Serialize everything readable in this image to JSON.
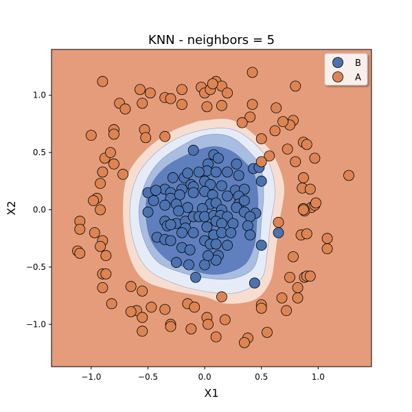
{
  "chart_data": {
    "type": "scatter",
    "title": "KNN - neighbors = 5",
    "xlabel": "X1",
    "ylabel": "X2",
    "xlim": [
      -1.35,
      1.47
    ],
    "ylim": [
      -1.37,
      1.4
    ],
    "xticks": [
      -1.0,
      -0.5,
      0.0,
      0.5,
      1.0
    ],
    "yticks": [
      -1.0,
      -0.5,
      0.0,
      0.5,
      1.0
    ],
    "xtick_labels": [
      "−1.0",
      "−0.5",
      "0.0",
      "0.5",
      "1.0"
    ],
    "ytick_labels": [
      "−1.0",
      "−0.5",
      "0.0",
      "0.5",
      "1.0"
    ],
    "grid": false,
    "legend_position": "top-right",
    "background_region_color": "#e49c7b",
    "decision_regions": [
      {
        "label": "B",
        "level": 0.4,
        "color": "#f7ddd0",
        "boundary": [
          [
            0.0,
            0.78
          ],
          [
            0.25,
            0.78
          ],
          [
            0.5,
            0.6
          ],
          [
            0.62,
            0.45
          ],
          [
            0.7,
            0.2
          ],
          [
            0.66,
            -0.1
          ],
          [
            0.62,
            -0.4
          ],
          [
            0.58,
            -0.62
          ],
          [
            0.45,
            -0.78
          ],
          [
            0.2,
            -0.82
          ],
          [
            0.0,
            -0.76
          ],
          [
            -0.3,
            -0.7
          ],
          [
            -0.55,
            -0.6
          ],
          [
            -0.68,
            -0.35
          ],
          [
            -0.72,
            0.0
          ],
          [
            -0.68,
            0.3
          ],
          [
            -0.52,
            0.52
          ],
          [
            -0.3,
            0.68
          ],
          [
            -0.1,
            0.76
          ]
        ]
      },
      {
        "label": "B",
        "level": 0.6,
        "color": "#e6ecf7",
        "boundary": [
          [
            0.0,
            0.7
          ],
          [
            0.25,
            0.7
          ],
          [
            0.45,
            0.57
          ],
          [
            0.57,
            0.4
          ],
          [
            0.62,
            0.15
          ],
          [
            0.58,
            -0.12
          ],
          [
            0.55,
            -0.38
          ],
          [
            0.5,
            -0.6
          ],
          [
            0.3,
            -0.72
          ],
          [
            0.05,
            -0.72
          ],
          [
            -0.25,
            -0.65
          ],
          [
            -0.5,
            -0.52
          ],
          [
            -0.62,
            -0.3
          ],
          [
            -0.66,
            0.0
          ],
          [
            -0.6,
            0.28
          ],
          [
            -0.45,
            0.48
          ],
          [
            -0.25,
            0.62
          ]
        ]
      },
      {
        "label": "B",
        "level": 0.8,
        "color": "#a9bde0",
        "boundary": [
          [
            0.0,
            0.65
          ],
          [
            0.22,
            0.64
          ],
          [
            0.4,
            0.5
          ],
          [
            0.5,
            0.35
          ],
          [
            0.52,
            0.12
          ],
          [
            0.5,
            -0.1
          ],
          [
            0.48,
            -0.35
          ],
          [
            0.42,
            -0.52
          ],
          [
            0.25,
            -0.6
          ],
          [
            0.05,
            -0.6
          ],
          [
            -0.2,
            -0.55
          ],
          [
            -0.42,
            -0.45
          ],
          [
            -0.54,
            -0.25
          ],
          [
            -0.58,
            0.0
          ],
          [
            -0.52,
            0.24
          ],
          [
            -0.4,
            0.42
          ],
          [
            -0.22,
            0.55
          ]
        ]
      },
      {
        "label": "B",
        "level": 1.0,
        "color": "#5f7fbe",
        "boundary": [
          [
            0.05,
            0.55
          ],
          [
            0.22,
            0.52
          ],
          [
            0.35,
            0.42
          ],
          [
            0.44,
            0.3
          ],
          [
            0.47,
            0.1
          ],
          [
            0.46,
            -0.1
          ],
          [
            0.44,
            -0.3
          ],
          [
            0.36,
            -0.47
          ],
          [
            0.2,
            -0.55
          ],
          [
            0.02,
            -0.56
          ],
          [
            -0.18,
            -0.5
          ],
          [
            -0.35,
            -0.42
          ],
          [
            -0.48,
            -0.25
          ],
          [
            -0.52,
            0.0
          ],
          [
            -0.48,
            0.2
          ],
          [
            -0.36,
            0.36
          ],
          [
            -0.18,
            0.47
          ]
        ]
      }
    ],
    "series": [
      {
        "name": "B",
        "color": "#4c72b0",
        "points": [
          [
            -0.1,
            0.52
          ],
          [
            0.03,
            0.4
          ],
          [
            0.08,
            0.48
          ],
          [
            0.12,
            0.45
          ],
          [
            0.28,
            0.4
          ],
          [
            0.43,
            0.36
          ],
          [
            0.48,
            0.37
          ],
          [
            -0.28,
            0.28
          ],
          [
            -0.18,
            0.28
          ],
          [
            -0.15,
            0.32
          ],
          [
            0.02,
            0.34
          ],
          [
            -0.05,
            0.33
          ],
          [
            0.1,
            0.33
          ],
          [
            0.2,
            0.33
          ],
          [
            0.3,
            0.3
          ],
          [
            -0.35,
            0.18
          ],
          [
            -0.3,
            0.15
          ],
          [
            -0.2,
            0.18
          ],
          [
            -0.12,
            0.22
          ],
          [
            -0.1,
            0.2
          ],
          [
            0.0,
            0.25
          ],
          [
            0.05,
            0.22
          ],
          [
            0.15,
            0.21
          ],
          [
            0.27,
            0.17
          ],
          [
            0.35,
            0.18
          ],
          [
            0.5,
            0.25
          ],
          [
            -0.5,
            0.15
          ],
          [
            -0.43,
            0.17
          ],
          [
            -0.45,
            0.08
          ],
          [
            -0.3,
            0.1
          ],
          [
            -0.22,
            0.13
          ],
          [
            -0.1,
            0.15
          ],
          [
            0.0,
            0.16
          ],
          [
            0.07,
            0.13
          ],
          [
            0.2,
            0.12
          ],
          [
            0.3,
            0.12
          ],
          [
            -0.35,
            0.04
          ],
          [
            -0.25,
            0.05
          ],
          [
            -0.15,
            0.02
          ],
          [
            0.05,
            0.05
          ],
          [
            0.1,
            0.06
          ],
          [
            0.3,
            0.05
          ],
          [
            0.35,
            0.08
          ],
          [
            0.28,
            0.02
          ],
          [
            -0.5,
            -0.02
          ],
          [
            -0.23,
            -0.01
          ],
          [
            -0.02,
            0.01
          ],
          [
            0.15,
            0.0
          ],
          [
            0.35,
            -0.02
          ],
          [
            0.45,
            -0.03
          ],
          [
            -0.35,
            -0.1
          ],
          [
            -0.25,
            -0.12
          ],
          [
            -0.17,
            -0.1
          ],
          [
            -0.1,
            -0.06
          ],
          [
            -0.05,
            -0.06
          ],
          [
            0.0,
            -0.06
          ],
          [
            0.08,
            -0.05
          ],
          [
            0.14,
            -0.05
          ],
          [
            0.2,
            -0.06
          ],
          [
            0.4,
            -0.06
          ],
          [
            -0.33,
            -0.14
          ],
          [
            -0.3,
            -0.13
          ],
          [
            -0.17,
            -0.16
          ],
          [
            0.02,
            -0.15
          ],
          [
            0.1,
            -0.1
          ],
          [
            0.15,
            -0.12
          ],
          [
            0.25,
            -0.12
          ],
          [
            0.38,
            -0.14
          ],
          [
            -0.42,
            -0.24
          ],
          [
            -0.35,
            -0.26
          ],
          [
            -0.3,
            -0.27
          ],
          [
            -0.2,
            -0.2
          ],
          [
            -0.1,
            -0.2
          ],
          [
            0.08,
            -0.22
          ],
          [
            0.15,
            -0.2
          ],
          [
            0.23,
            -0.2
          ],
          [
            0.4,
            -0.22
          ],
          [
            -0.2,
            -0.33
          ],
          [
            -0.13,
            -0.35
          ],
          [
            0.0,
            -0.27
          ],
          [
            0.05,
            -0.3
          ],
          [
            0.1,
            -0.3
          ],
          [
            0.2,
            -0.31
          ],
          [
            0.5,
            -0.31
          ],
          [
            0.12,
            -0.4
          ],
          [
            -0.25,
            -0.46
          ],
          [
            -0.14,
            -0.48
          ],
          [
            0.0,
            -0.48
          ],
          [
            0.1,
            -0.44
          ],
          [
            0.03,
            -0.4
          ],
          [
            -0.08,
            -0.59
          ],
          [
            0.44,
            -0.64
          ],
          [
            0.65,
            -0.2
          ]
        ]
      },
      {
        "name": "A",
        "color": "#dd8452",
        "points": [
          [
            -0.9,
            1.12
          ],
          [
            -0.57,
            1.05
          ],
          [
            -0.48,
            1.02
          ],
          [
            -0.75,
            0.93
          ],
          [
            -0.7,
            0.88
          ],
          [
            -0.55,
            0.93
          ],
          [
            -0.35,
            0.98
          ],
          [
            -0.3,
            0.97
          ],
          [
            -0.2,
            1.05
          ],
          [
            -0.2,
            0.92
          ],
          [
            -0.03,
            1.07
          ],
          [
            0.0,
            1.02
          ],
          [
            0.02,
            0.9
          ],
          [
            0.05,
            1.05
          ],
          [
            0.1,
            1.12
          ],
          [
            0.15,
            1.08
          ],
          [
            0.2,
            1.02
          ],
          [
            0.15,
            0.91
          ],
          [
            0.42,
            1.2
          ],
          [
            0.42,
            0.92
          ],
          [
            0.4,
            0.81
          ],
          [
            0.33,
            0.76
          ],
          [
            0.07,
            1.1
          ],
          [
            0.63,
            0.89
          ],
          [
            0.8,
            1.08
          ],
          [
            0.78,
            0.78
          ],
          [
            0.75,
            0.74
          ],
          [
            0.69,
            0.77
          ],
          [
            0.62,
            0.69
          ],
          [
            0.5,
            0.62
          ],
          [
            -1.0,
            0.65
          ],
          [
            -0.8,
            0.7
          ],
          [
            -0.8,
            0.66
          ],
          [
            -0.53,
            0.7
          ],
          [
            -0.52,
            0.63
          ],
          [
            -0.35,
            0.64
          ],
          [
            -0.88,
            0.45
          ],
          [
            -0.83,
            0.5
          ],
          [
            -0.8,
            0.4
          ],
          [
            -0.72,
            0.31
          ],
          [
            -0.9,
            0.33
          ],
          [
            -0.92,
            0.23
          ],
          [
            -0.95,
            0.1
          ],
          [
            -0.98,
            0.08
          ],
          [
            -0.92,
            0.0
          ],
          [
            -1.1,
            -0.1
          ],
          [
            -1.1,
            -0.17
          ],
          [
            -0.97,
            -0.2
          ],
          [
            -0.9,
            -0.27
          ],
          [
            -0.92,
            -0.32
          ],
          [
            -0.87,
            -0.4
          ],
          [
            -1.12,
            -0.36
          ],
          [
            -1.1,
            -0.38
          ],
          [
            -0.9,
            -0.56
          ],
          [
            -0.87,
            -0.56
          ],
          [
            -0.9,
            -0.68
          ],
          [
            -0.65,
            -0.67
          ],
          [
            -0.55,
            -0.71
          ],
          [
            -0.82,
            -0.82
          ],
          [
            -0.47,
            -0.85
          ],
          [
            -0.35,
            -0.87
          ],
          [
            -0.6,
            -0.88
          ],
          [
            -0.65,
            -0.89
          ],
          [
            -0.55,
            -0.94
          ],
          [
            -0.55,
            -1.06
          ],
          [
            -0.3,
            -1.0
          ],
          [
            -0.3,
            -1.02
          ],
          [
            -0.15,
            -0.82
          ],
          [
            -0.09,
            -0.85
          ],
          [
            -0.12,
            -1.04
          ],
          [
            0.02,
            -0.94
          ],
          [
            0.03,
            -1.0
          ],
          [
            0.1,
            -1.11
          ],
          [
            0.15,
            -0.76
          ],
          [
            0.18,
            -0.96
          ],
          [
            0.38,
            -1.12
          ],
          [
            0.35,
            -1.16
          ],
          [
            0.5,
            -0.83
          ],
          [
            0.5,
            -0.86
          ],
          [
            0.55,
            -1.07
          ],
          [
            0.68,
            -0.77
          ],
          [
            0.72,
            -0.88
          ],
          [
            0.75,
            -0.59
          ],
          [
            0.82,
            -0.68
          ],
          [
            0.82,
            -0.77
          ],
          [
            0.88,
            -0.59
          ],
          [
            0.9,
            -0.58
          ],
          [
            0.93,
            -0.58
          ],
          [
            0.78,
            -0.41
          ],
          [
            0.85,
            -0.22
          ],
          [
            0.9,
            -0.21
          ],
          [
            1.08,
            -0.25
          ],
          [
            1.08,
            -0.34
          ],
          [
            0.65,
            -0.11
          ],
          [
            0.86,
            0.19
          ],
          [
            0.87,
            0.28
          ],
          [
            0.93,
            0.18
          ],
          [
            0.94,
            0.02
          ],
          [
            0.97,
            0.04
          ],
          [
            0.98,
            0.06
          ],
          [
            1.27,
            0.3
          ],
          [
            0.88,
            -0.01
          ],
          [
            0.87,
            0.01
          ],
          [
            0.87,
            0.59
          ],
          [
            0.9,
            0.57
          ],
          [
            0.97,
            0.45
          ],
          [
            0.8,
            0.42
          ],
          [
            0.73,
            0.53
          ],
          [
            0.57,
            0.47
          ],
          [
            0.5,
            0.42
          ],
          [
            0.87,
            0.0
          ]
        ]
      }
    ]
  }
}
